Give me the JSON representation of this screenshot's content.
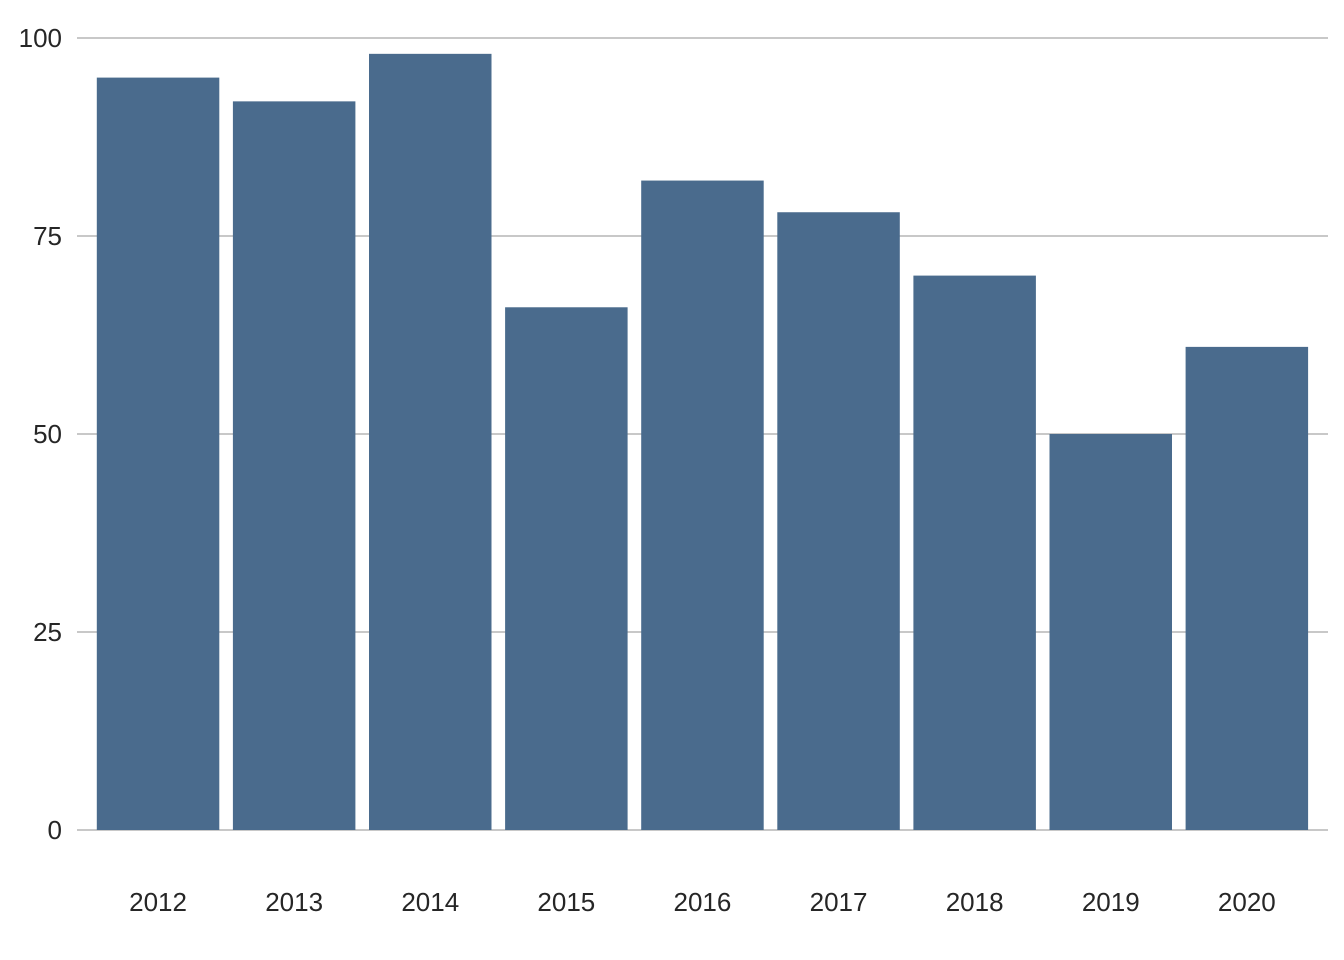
{
  "chart_data": {
    "type": "bar",
    "categories": [
      "2012",
      "2013",
      "2014",
      "2015",
      "2016",
      "2017",
      "2018",
      "2019",
      "2020"
    ],
    "values": [
      95,
      92,
      98,
      66,
      82,
      78,
      70,
      50,
      61
    ],
    "title": "",
    "xlabel": "",
    "ylabel": "",
    "ylim": [
      0,
      100
    ],
    "yticks": [
      "0",
      "25",
      "50",
      "75",
      "100"
    ],
    "grid": "horizontal",
    "legend": "none",
    "bar_color": "#4a6b8d",
    "grid_color": "#c8c8c8",
    "text_color": "#262626"
  }
}
